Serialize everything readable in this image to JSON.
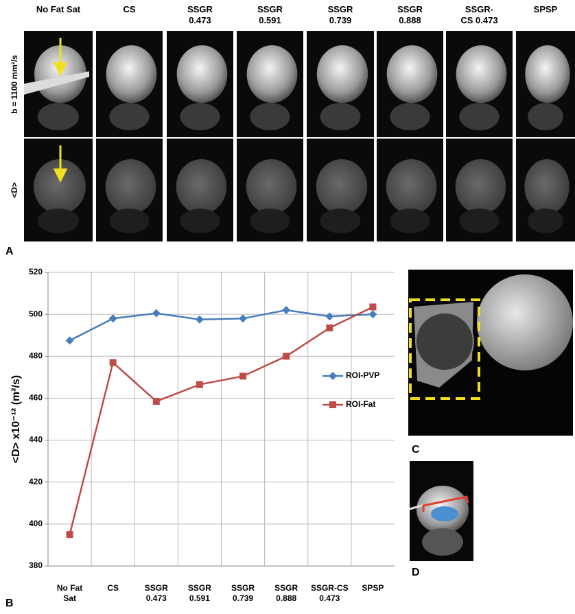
{
  "panel_labels": [
    "A",
    "B",
    "C",
    "D"
  ],
  "columns": [
    "No Fat Sat",
    "CS",
    "SSGR 0.473",
    "SSGR 0.591",
    "SSGR 0.739",
    "SSGR 0.888",
    "SSGR-CS 0.473",
    "SPSP"
  ],
  "row_labels": [
    "b = 1100 mm²/s",
    "<D>"
  ],
  "chart_data": {
    "type": "line",
    "y_label": "<D> x10⁻¹² (m²/s)",
    "categories": [
      "No Fat Sat",
      "CS",
      "SSGR 0.473",
      "SSGR 0.591",
      "SSGR 0.739",
      "SSGR 0.888",
      "SSGR-CS 0.473",
      "SPSP"
    ],
    "series": [
      {
        "name": "ROI-PVP",
        "color": "#4a7ebb",
        "marker": "diamond",
        "values": [
          487.5,
          498,
          500.5,
          497.5,
          498,
          502,
          499,
          500
        ]
      },
      {
        "name": "ROI-Fat",
        "color": "#be4b48",
        "marker": "square",
        "values": [
          395,
          477,
          458.5,
          466.5,
          470.5,
          480,
          493.5,
          503.5
        ]
      }
    ],
    "ylim": [
      380,
      520
    ],
    "yticks": [
      380,
      400,
      420,
      440,
      460,
      480,
      500,
      520
    ],
    "grid": true
  }
}
